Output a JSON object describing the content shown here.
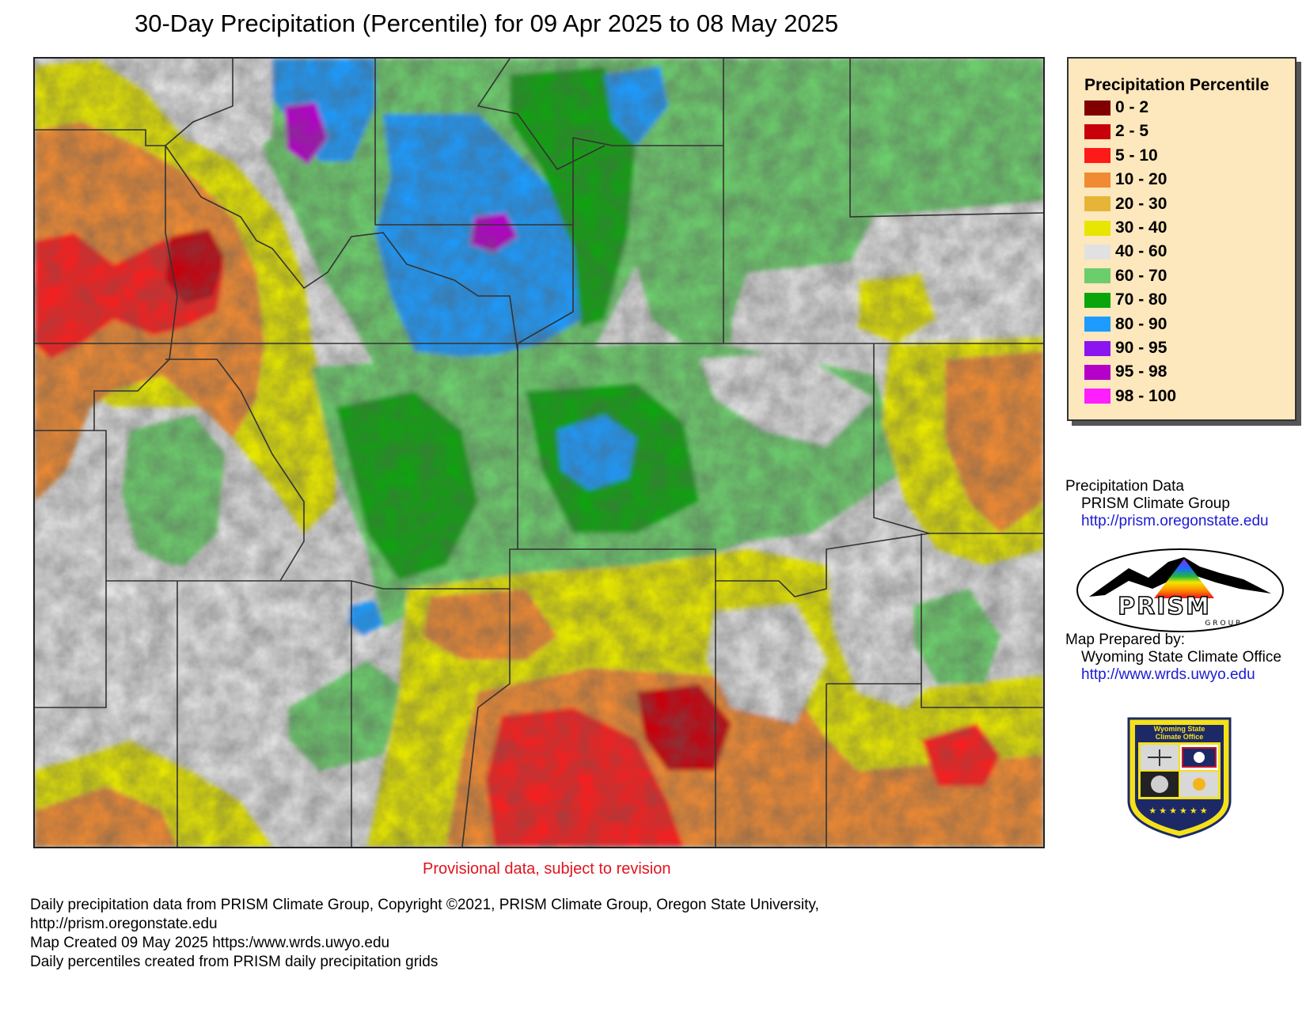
{
  "title": "30-Day Precipitation (Percentile) for 09 Apr 2025 to 08 May 2025",
  "legend": {
    "title": "Precipitation Percentile",
    "items": [
      {
        "label": "0 - 2",
        "color": "#800000"
      },
      {
        "label": "2 - 5",
        "color": "#c8000a"
      },
      {
        "label": "5 - 10",
        "color": "#ff1a1a"
      },
      {
        "label": "10 - 20",
        "color": "#f08a33"
      },
      {
        "label": "20 - 30",
        "color": "#e6b437"
      },
      {
        "label": "30 - 40",
        "color": "#e6e600"
      },
      {
        "label": "40 - 60",
        "color": "#e1e1e1"
      },
      {
        "label": "60 - 70",
        "color": "#6ccd6c"
      },
      {
        "label": "70 - 80",
        "color": "#0aa50a"
      },
      {
        "label": "80 - 90",
        "color": "#1e9bff"
      },
      {
        "label": "90 - 95",
        "color": "#8c14f0"
      },
      {
        "label": "95 - 98",
        "color": "#b400c8"
      },
      {
        "label": "98 - 100",
        "color": "#ff1eff"
      }
    ]
  },
  "credits": {
    "data_heading": "Precipitation Data",
    "data_source": "PRISM Climate Group",
    "data_url": "http://prism.oregonstate.edu",
    "prepared_heading": "Map Prepared by:",
    "prepared_by": "Wyoming State Climate Office",
    "prepared_url": "http://www.wrds.uwyo.edu"
  },
  "logos": {
    "prism_text": "PRISM",
    "prism_sub": "GROUP",
    "wsco_line1": "Wyoming State",
    "wsco_line2": "Climate Office"
  },
  "provisional_note": "Provisional data, subject to revision",
  "footer": [
    "Daily precipitation data from PRISM Climate Group, Copyright ©2021, PRISM Climate Group, Oregon State University,",
    "http://prism.oregonstate.edu",
    "Map Created 09 May 2025 https:/www.wrds.uwyo.edu",
    "Daily percentiles created from PRISM daily precipitation grids"
  ]
}
